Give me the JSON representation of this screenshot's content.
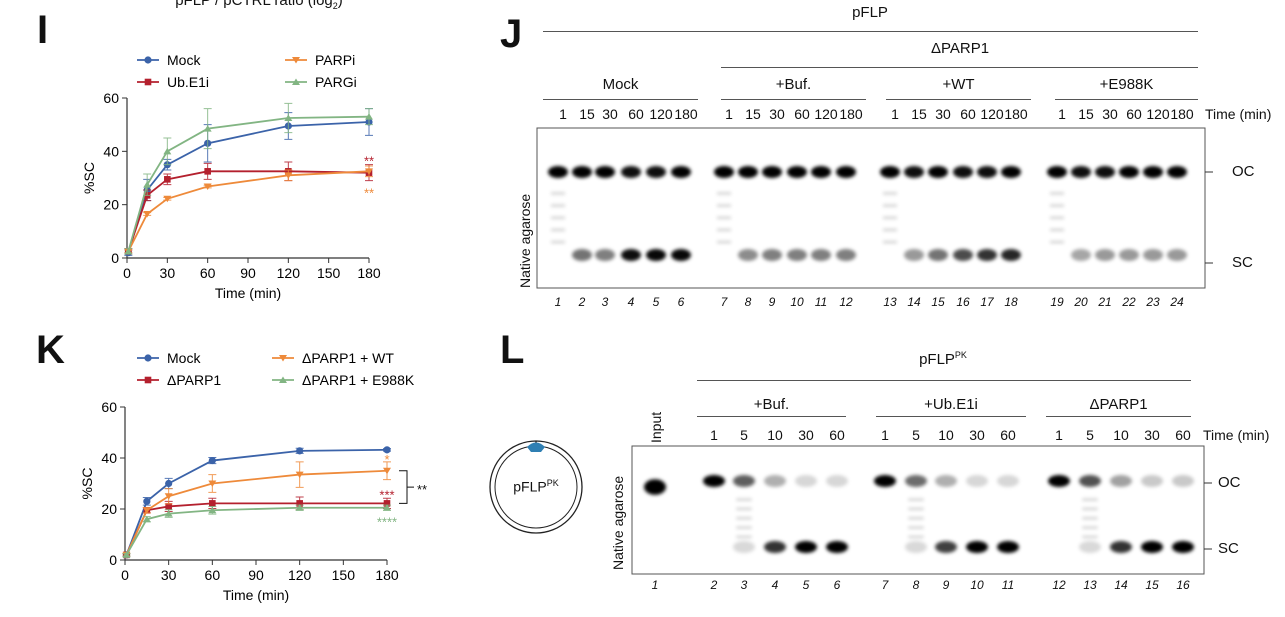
{
  "top_cut_title": {
    "main": "pFLP / pCTRL ratio (log",
    "sub": "2",
    "end": ")"
  },
  "panels": {
    "I": "I",
    "J": "J",
    "K": "K",
    "L": "L"
  },
  "chart_data": [
    {
      "id": "I",
      "type": "line",
      "title": "",
      "xlabel": "Time (min)",
      "ylabel": "%SC",
      "xlim": [
        0,
        180
      ],
      "ylim": [
        0,
        60
      ],
      "xticks": [
        0,
        30,
        60,
        90,
        120,
        150,
        180
      ],
      "yticks": [
        0,
        20,
        40,
        60
      ],
      "grid": false,
      "legend_placement": "top",
      "x": [
        1,
        15,
        30,
        60,
        120,
        180
      ],
      "series": [
        {
          "name": "Mock",
          "color": "#3b63a9",
          "marker": "circle",
          "values": [
            2,
            25.5,
            35,
            43,
            49.5,
            51
          ],
          "errors": [
            1,
            4,
            2,
            7,
            5,
            5
          ]
        },
        {
          "name": "Ub.E1i",
          "color": "#b4202e",
          "marker": "square",
          "values": [
            2.5,
            23.5,
            29.5,
            32.5,
            32.5,
            32
          ],
          "errors": [
            1,
            2,
            2,
            3,
            3.5,
            3
          ]
        },
        {
          "name": "PARPi",
          "color": "#ee8a3a",
          "marker": "triangle-down",
          "values": [
            2.5,
            16.5,
            22.2,
            26.8,
            31,
            32.5
          ],
          "errors": [
            0.5,
            0.5,
            0.5,
            0.5,
            2,
            2
          ]
        },
        {
          "name": "PARGi",
          "color": "#82b583",
          "marker": "triangle-up",
          "values": [
            2.5,
            27.5,
            40,
            48.5,
            52.5,
            53
          ],
          "errors": [
            1,
            4,
            5,
            7.5,
            5.5,
            3
          ]
        }
      ],
      "annotations": [
        {
          "text": "**",
          "color": "#b4202e",
          "x": 180,
          "y": 37
        },
        {
          "text": "**",
          "color": "#ee8a3a",
          "x": 180,
          "y": 25
        }
      ]
    },
    {
      "id": "K",
      "type": "line",
      "title": "",
      "xlabel": "Time (min)",
      "ylabel": "%SC",
      "xlim": [
        0,
        180
      ],
      "ylim": [
        0,
        60
      ],
      "xticks": [
        0,
        30,
        60,
        90,
        120,
        150,
        180
      ],
      "yticks": [
        0,
        20,
        40,
        60
      ],
      "grid": false,
      "legend_placement": "top",
      "x": [
        1,
        15,
        30,
        60,
        120,
        180
      ],
      "series": [
        {
          "name": "Mock",
          "color": "#3b63a9",
          "marker": "circle",
          "values": [
            2,
            23,
            30,
            39,
            42.8,
            43.2
          ],
          "errors": [
            0.5,
            1.5,
            2,
            1.2,
            1,
            0.5
          ]
        },
        {
          "name": "ΔPARP1",
          "color": "#b4202e",
          "marker": "square",
          "values": [
            2,
            19.5,
            21,
            22.2,
            22.2,
            22.2
          ],
          "errors": [
            0.5,
            1,
            2,
            2,
            2.5,
            2
          ]
        },
        {
          "name": "ΔPARP1 + WT",
          "color": "#ee8a3a",
          "marker": "triangle-down",
          "values": [
            2,
            19.5,
            25,
            30,
            33.5,
            35
          ],
          "errors": [
            0.5,
            1,
            3,
            3.5,
            5,
            3.5
          ]
        },
        {
          "name": "ΔPARP1 + E988K",
          "color": "#82b583",
          "marker": "triangle-up",
          "values": [
            2,
            16,
            18.2,
            19.5,
            20.5,
            20.5
          ],
          "errors": [
            0.5,
            1,
            1.5,
            1.5,
            1,
            1
          ]
        }
      ],
      "annotations": [
        {
          "text": "*",
          "color": "#ee8a3a",
          "x": 180,
          "y": 40
        },
        {
          "text": "***",
          "color": "#b4202e",
          "x": 180,
          "y": 26
        },
        {
          "text": "****",
          "color": "#82b583",
          "x": 180,
          "y": 15.5
        },
        {
          "text": "**",
          "color": "#111111",
          "x": 180,
          "y": 30,
          "bracket": [
            35,
            22.2
          ]
        }
      ]
    }
  ],
  "gel_J": {
    "construct": "pFLP",
    "deletion": "ΔPARP1",
    "groups": [
      "Mock",
      "+Buf.",
      "+WT",
      "+E988K"
    ],
    "times": [
      "1",
      "15",
      "30",
      "60",
      "120",
      "180"
    ],
    "time_unit": "Time (min)",
    "ylabel": "Native agarose",
    "bands": [
      "OC",
      "SC"
    ],
    "lanes": [
      "1",
      "2",
      "3",
      "4",
      "5",
      "6",
      "7",
      "8",
      "9",
      "10",
      "11",
      "12",
      "13",
      "14",
      "15",
      "16",
      "17",
      "18",
      "19",
      "20",
      "21",
      "22",
      "23",
      "24"
    ],
    "oc_intensity": [
      1,
      0.95,
      0.95,
      0.9,
      0.9,
      0.95,
      1,
      0.95,
      0.95,
      0.95,
      0.95,
      0.95,
      1,
      0.9,
      0.95,
      0.9,
      0.9,
      0.95,
      1,
      0.9,
      0.9,
      0.95,
      0.95,
      0.95
    ],
    "sc_intensity": [
      0,
      0.55,
      0.5,
      0.95,
      0.97,
      0.97,
      0,
      0.45,
      0.5,
      0.5,
      0.5,
      0.5,
      0,
      0.4,
      0.55,
      0.7,
      0.8,
      0.85,
      0,
      0.35,
      0.4,
      0.4,
      0.4,
      0.4
    ]
  },
  "gel_L": {
    "construct": "pFLP",
    "construct_sup": "PK",
    "input_label": "Input",
    "groups": [
      "+Buf.",
      "+Ub.E1i",
      "ΔPARP1"
    ],
    "times": [
      "1",
      "5",
      "10",
      "30",
      "60"
    ],
    "time_unit": "Time (min)",
    "ylabel": "Native agarose",
    "bands": [
      "OC",
      "SC"
    ],
    "plasmid_label": "pFLP",
    "plasmid_label_sup": "PK",
    "lanes": [
      "1",
      "2",
      "3",
      "4",
      "5",
      "6",
      "7",
      "8",
      "9",
      "10",
      "11",
      "12",
      "13",
      "14",
      "15",
      "16"
    ],
    "oc_intensity": [
      1,
      1,
      0.6,
      0.3,
      0.15,
      0.15,
      1,
      0.55,
      0.3,
      0.15,
      0.15,
      1,
      0.65,
      0.35,
      0.2,
      0.2
    ],
    "sc_intensity": [
      0,
      0,
      0.15,
      0.8,
      1,
      1,
      0,
      0.15,
      0.75,
      1,
      1,
      0,
      0.15,
      0.8,
      1,
      1
    ]
  }
}
